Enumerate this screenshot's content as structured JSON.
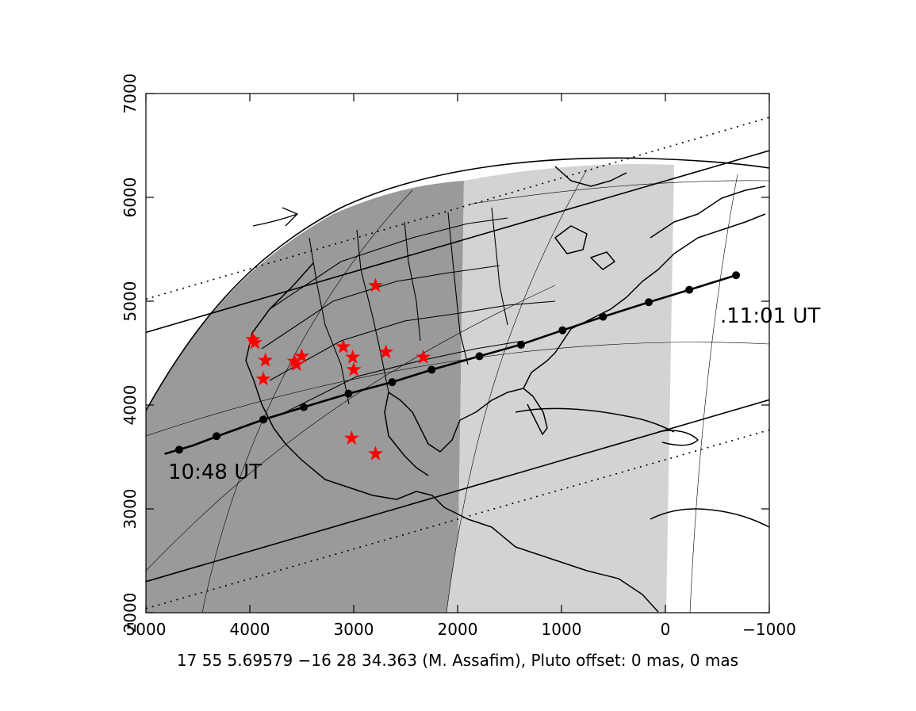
{
  "plot": {
    "x_ticks": [
      {
        "value": 5000,
        "label": "5000"
      },
      {
        "value": 4000,
        "label": "4000"
      },
      {
        "value": 3000,
        "label": "3000"
      },
      {
        "value": 2000,
        "label": "2000"
      },
      {
        "value": 1000,
        "label": "1000"
      },
      {
        "value": 0,
        "label": "0"
      },
      {
        "value": -1000,
        "label": "−1000"
      }
    ],
    "y_ticks": [
      {
        "value": 2000,
        "label": "2000"
      },
      {
        "value": 3000,
        "label": "3000"
      },
      {
        "value": 4000,
        "label": "4000"
      },
      {
        "value": 5000,
        "label": "5000"
      },
      {
        "value": 6000,
        "label": "6000"
      },
      {
        "value": 7000,
        "label": "7000"
      }
    ],
    "x_range": [
      5000,
      -1000
    ],
    "y_range": [
      2000,
      7000
    ],
    "caption": "17 55  5.69579 −16 28 34.363 (M. Assafim), Pluto offset: 0 mas, 0 mas",
    "colors": {
      "night_shade": "#9a9a9a",
      "twilight_shade": "#d3d3d3",
      "station_marker": "#ff0000",
      "lines": "#000000"
    }
  },
  "path_labels": {
    "start_time": "10:48 UT",
    "end_time": ".11:01 UT"
  },
  "chart_data": {
    "type": "scatter",
    "description_fields": {
      "xlabel": "",
      "ylabel": ""
    },
    "xlim": [
      5000,
      -1000
    ],
    "ylim": [
      2000,
      7000
    ],
    "central_line": [
      [
        4820,
        3530
      ],
      [
        4550,
        3610
      ],
      [
        4230,
        3730
      ],
      [
        3870,
        3860
      ],
      [
        3480,
        3980
      ],
      [
        3050,
        4110
      ],
      [
        2630,
        4220
      ],
      [
        2250,
        4340
      ],
      [
        1790,
        4470
      ],
      [
        1400,
        4580
      ],
      [
        990,
        4720
      ],
      [
        600,
        4850
      ],
      [
        160,
        4990
      ],
      [
        -230,
        5110
      ],
      [
        -680,
        5250
      ]
    ],
    "central_line_dots": [
      [
        4680,
        3570
      ],
      [
        4320,
        3700
      ],
      [
        3870,
        3860
      ],
      [
        3480,
        3980
      ],
      [
        3050,
        4110
      ],
      [
        2630,
        4220
      ],
      [
        2250,
        4340
      ],
      [
        1790,
        4470
      ],
      [
        1390,
        4580
      ],
      [
        990,
        4720
      ],
      [
        600,
        4850
      ],
      [
        160,
        4990
      ],
      [
        -230,
        5110
      ],
      [
        -680,
        5250
      ]
    ],
    "north_limit": [
      [
        5000,
        4700
      ],
      [
        -1000,
        6450
      ]
    ],
    "south_limit": [
      [
        5000,
        2300
      ],
      [
        -1000,
        4050
      ]
    ],
    "north_dotted_limit": [
      [
        5000,
        5020
      ],
      [
        -1000,
        6770
      ]
    ],
    "south_dotted_limit": [
      [
        5000,
        2040
      ],
      [
        -1000,
        3760
      ]
    ],
    "stations": [
      [
        3970,
        4630
      ],
      [
        3950,
        4600
      ],
      [
        3850,
        4430
      ],
      [
        3870,
        4250
      ],
      [
        3570,
        4420
      ],
      [
        3550,
        4390
      ],
      [
        3500,
        4470
      ],
      [
        3100,
        4560
      ],
      [
        3010,
        4460
      ],
      [
        3000,
        4340
      ],
      [
        2690,
        4510
      ],
      [
        2790,
        5150
      ],
      [
        2330,
        4460
      ],
      [
        3020,
        3680
      ],
      [
        2790,
        3530
      ]
    ]
  }
}
